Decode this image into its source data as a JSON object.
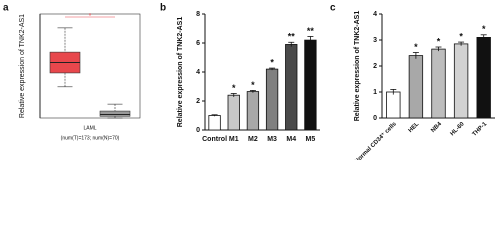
{
  "chart_data": [
    {
      "type": "box",
      "panel": "a",
      "ylabel": "Relative expression of TNK2-AS1",
      "categories": [
        "LAML"
      ],
      "xlabel": "(num(T)=173; num(N)=70)",
      "annotation": "*",
      "ylim": [
        0,
        30
      ],
      "series": [
        {
          "color": "#e8474c",
          "whisker_low": 9,
          "q1": 13,
          "median": 16,
          "q3": 19,
          "whisker_high": 26
        },
        {
          "color": "#9a9a9a",
          "whisker_low": 0,
          "q1": 0.5,
          "median": 1,
          "q3": 2,
          "whisker_high": 4
        }
      ]
    },
    {
      "type": "bar",
      "panel": "b",
      "ylabel": "Relative expression of TNK2-AS1",
      "ylim": [
        0,
        8
      ],
      "yticks": [
        0,
        2,
        4,
        6,
        8
      ],
      "categories": [
        "Control",
        "M1",
        "M2",
        "M3",
        "M4",
        "M5"
      ],
      "values": [
        1.0,
        2.4,
        2.65,
        4.2,
        5.9,
        6.2
      ],
      "errors": [
        0.05,
        0.12,
        0.08,
        0.07,
        0.15,
        0.25
      ],
      "colors": [
        "#ffffff",
        "#c8c8c8",
        "#a8a8a8",
        "#808080",
        "#4a4a4a",
        "#111111"
      ],
      "significance": [
        null,
        "*",
        "*",
        "*",
        "**",
        "**"
      ]
    },
    {
      "type": "bar",
      "panel": "c",
      "ylabel": "Relative expression of TNK2-AS1",
      "ylim": [
        0,
        4
      ],
      "yticks": [
        0,
        1,
        2,
        3,
        4
      ],
      "categories": [
        "Normal CD34⁺ cells",
        "HEL",
        "NB4",
        "HL-60",
        "THP-1"
      ],
      "values": [
        1.0,
        2.4,
        2.65,
        2.85,
        3.1
      ],
      "errors": [
        0.1,
        0.12,
        0.08,
        0.07,
        0.1
      ],
      "colors": [
        "#ffffff",
        "#a8a8a8",
        "#bdbdbd",
        "#d2d2d2",
        "#111111"
      ],
      "significance": [
        null,
        "*",
        "*",
        "*",
        "*"
      ]
    }
  ]
}
